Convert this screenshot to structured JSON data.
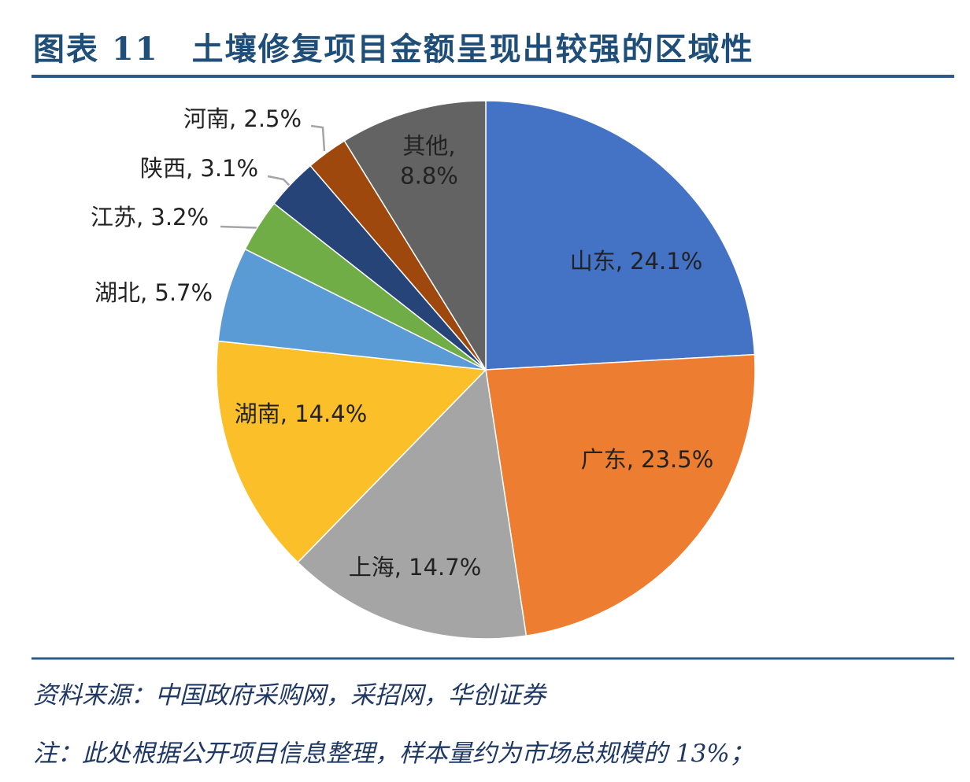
{
  "chart_data": {
    "type": "pie",
    "title": "图表 11　土壤修复项目金额呈现出较强的区域性",
    "values": [
      24.1,
      23.5,
      14.7,
      14.4,
      5.7,
      3.2,
      3.1,
      2.5,
      8.8
    ],
    "value_labels": [
      "山东, 24.1%",
      "广东, 23.5%",
      "上海, 14.7%",
      "湖南, 14.4%",
      "湖北, 5.7%",
      "江苏, 3.2%",
      "陕西, 3.1%",
      "河南, 2.5%",
      "其他,\n8.8%"
    ],
    "colors": [
      "#4472c4",
      "#ed7d31",
      "#a5a5a5",
      "#fbbf2a",
      "#5b9bd5",
      "#70ad47",
      "#264478",
      "#9e480e",
      "#636363"
    ],
    "source": "资料来源：中国政府采购网，采招网，华创证券",
    "note": "注：此处根据公开项目信息整理，样本量约为市场总规模的 13%；"
  }
}
